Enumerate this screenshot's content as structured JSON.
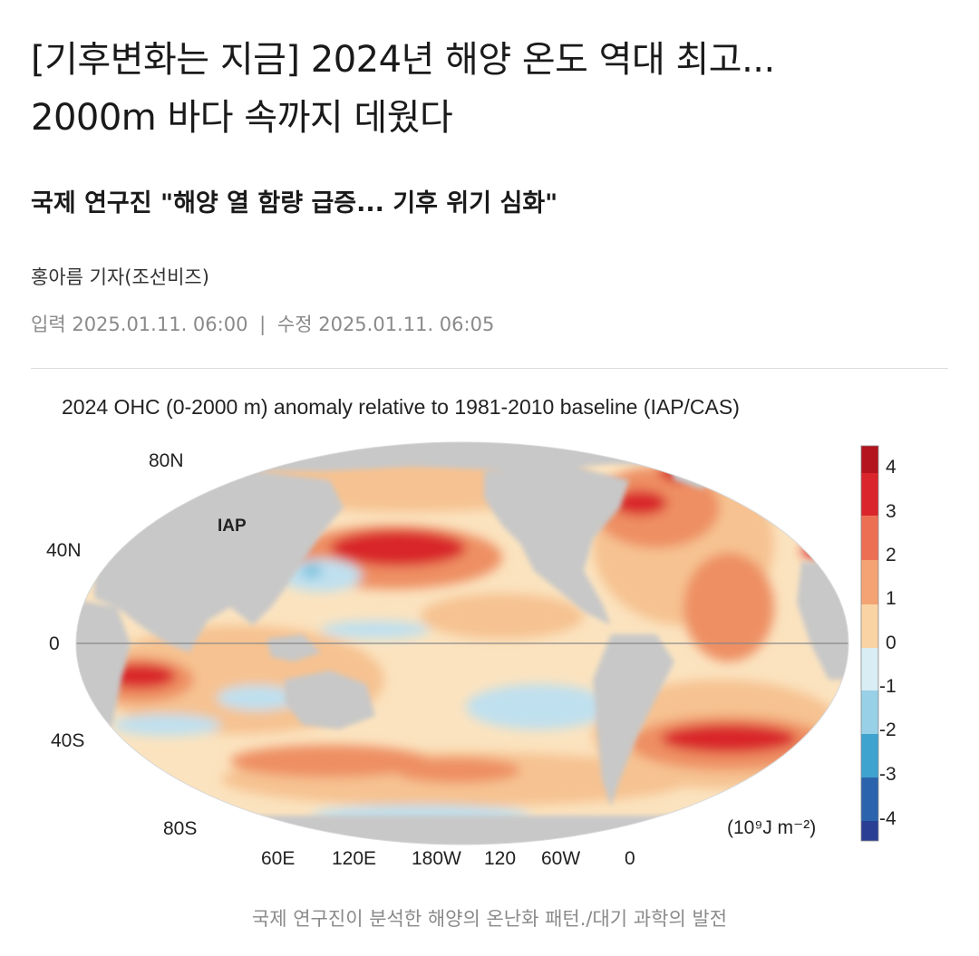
{
  "article": {
    "headline_line1": "[기후변화는 지금] 2024년 해양 온도 역대 최고...",
    "headline_line2": "2000m 바다 속까지 데웠다",
    "subheadline": "국제 연구진 \"해양 열 함량 급증... 기후 위기 심화\"",
    "byline": "홍아름 기자(조선비즈)",
    "input_label": "입력",
    "input_date": "2025.01.11. 06:00",
    "separator": "|",
    "modified_label": "수정",
    "modified_date": "2025.01.11. 06:05",
    "caption": "국제 연구진이 분석한 해양의 온난화 패턴./대기 과학의 발전"
  },
  "figure": {
    "title": "2024 OHC (0-2000 m) anomaly relative to 1981-2010 baseline (IAP/CAS)",
    "dataset_label": "IAP",
    "lat_labels": [
      "80N",
      "40N",
      "0",
      "40S",
      "80S"
    ],
    "lon_labels": [
      "60E",
      "120E",
      "180W",
      "120",
      "60W",
      "0"
    ],
    "colorbar_ticks": [
      "4",
      "3",
      "2",
      "1",
      "0",
      "-1",
      "-2",
      "-3",
      "-4"
    ],
    "unit_label": "(10⁹J m⁻²)",
    "colors": {
      "land": "#c8c8c8",
      "ocean_neutral": "#fbe3bf",
      "warm_light": "#f6c291",
      "warm_mid": "#ee8f63",
      "warm_strong": "#d9252b",
      "cool_light": "#bfe0ef",
      "cool_mid": "#7fc4e0",
      "cool_strong": "#2b63ad"
    }
  }
}
